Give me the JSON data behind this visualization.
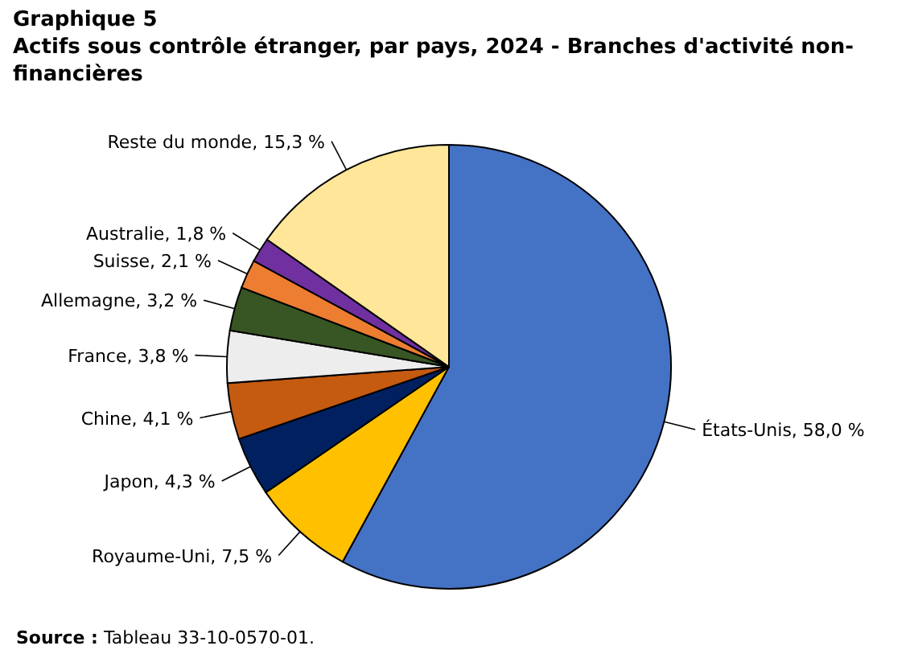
{
  "chart_data": {
    "type": "pie",
    "title": "Graphique 5",
    "subtitle": "Actifs sous contrôle étranger, par pays, 2024 - Branches d'activité non-financières",
    "categories": [
      "États-Unis",
      "Royaume-Uni",
      "Japon",
      "Chine",
      "France",
      "Allemagne",
      "Suisse",
      "Australie",
      "Reste du monde"
    ],
    "values": [
      58.0,
      7.5,
      4.3,
      4.1,
      3.8,
      3.2,
      2.1,
      1.8,
      15.3
    ],
    "value_labels": [
      "58,0 %",
      "7,5 %",
      "4,3 %",
      "4,1 %",
      "3,8 %",
      "3,2 %",
      "2,1 %",
      "1,8 %",
      "15,3 %"
    ],
    "colors": [
      "#4472c4",
      "#ffc000",
      "#002060",
      "#c55a11",
      "#ededed",
      "#375623",
      "#ed7d31",
      "#7030a0",
      "#ffe699"
    ],
    "annotations": [
      "Source : Tableau 33-10-0570-01."
    ]
  }
}
